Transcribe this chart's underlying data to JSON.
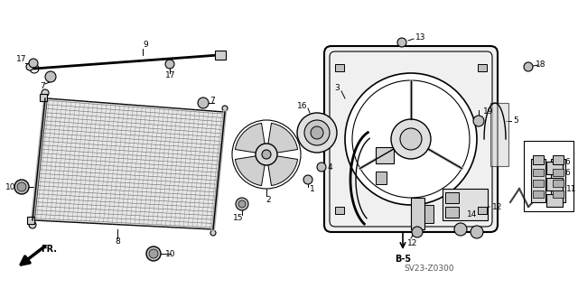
{
  "bg_color": "#ffffff",
  "fig_width": 6.4,
  "fig_height": 3.19,
  "dpi": 100,
  "watermark": "SV23-Z0300",
  "ref_label": "B-5",
  "fr_label": "FR."
}
